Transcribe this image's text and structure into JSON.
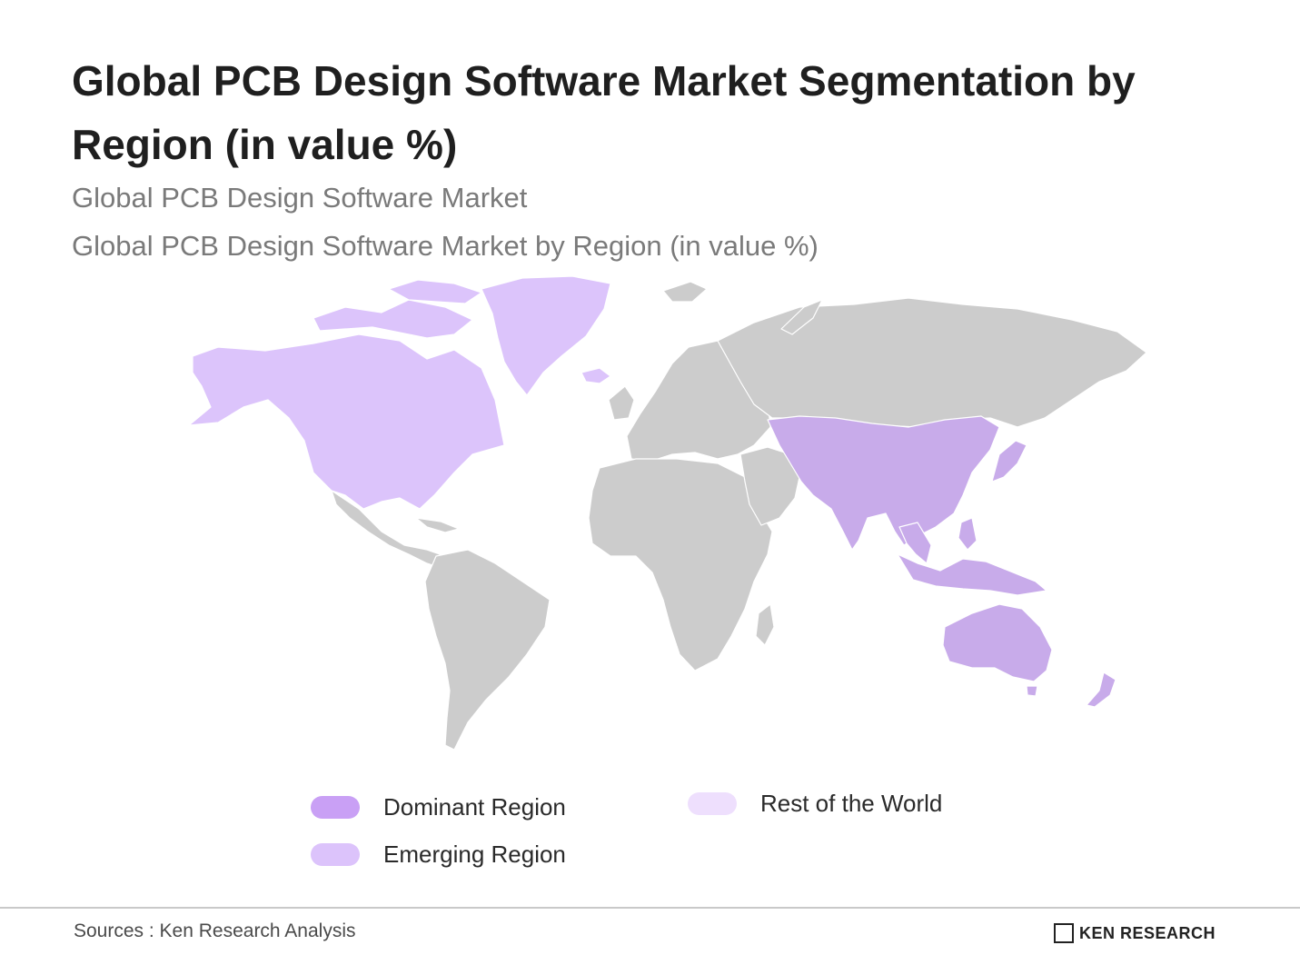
{
  "title": "Global PCB Design Software Market Segmentation by Region (in value %)",
  "subtitle_1": "Global PCB Design Software Market",
  "subtitle_2": "Global PCB Design Software Market by Region (in value %)",
  "colors": {
    "dominant": "#c9a0f5",
    "emerging": "#dcc3fb",
    "rest": "#eedffd",
    "asia_pacific": "#c8abea",
    "north_america": "#dcc4fb",
    "land_default": "#cccccc"
  },
  "map": {
    "regions": [
      {
        "name": "North America",
        "category": "emerging"
      },
      {
        "name": "Greenland",
        "category": "emerging"
      },
      {
        "name": "Asia Pacific",
        "category": "dominant"
      },
      {
        "name": "Oceania",
        "category": "dominant"
      },
      {
        "name": "Europe",
        "category": "none"
      },
      {
        "name": "Russia",
        "category": "none"
      },
      {
        "name": "Latin America",
        "category": "none"
      },
      {
        "name": "Middle East & Africa",
        "category": "none"
      }
    ]
  },
  "legend": {
    "items": [
      {
        "label": "Dominant Region"
      },
      {
        "label": "Emerging Region"
      },
      {
        "label": "Rest of the World"
      }
    ]
  },
  "footer": {
    "source": "Sources : Ken Research Analysis",
    "logo_text": "KEN RESEARCH"
  }
}
